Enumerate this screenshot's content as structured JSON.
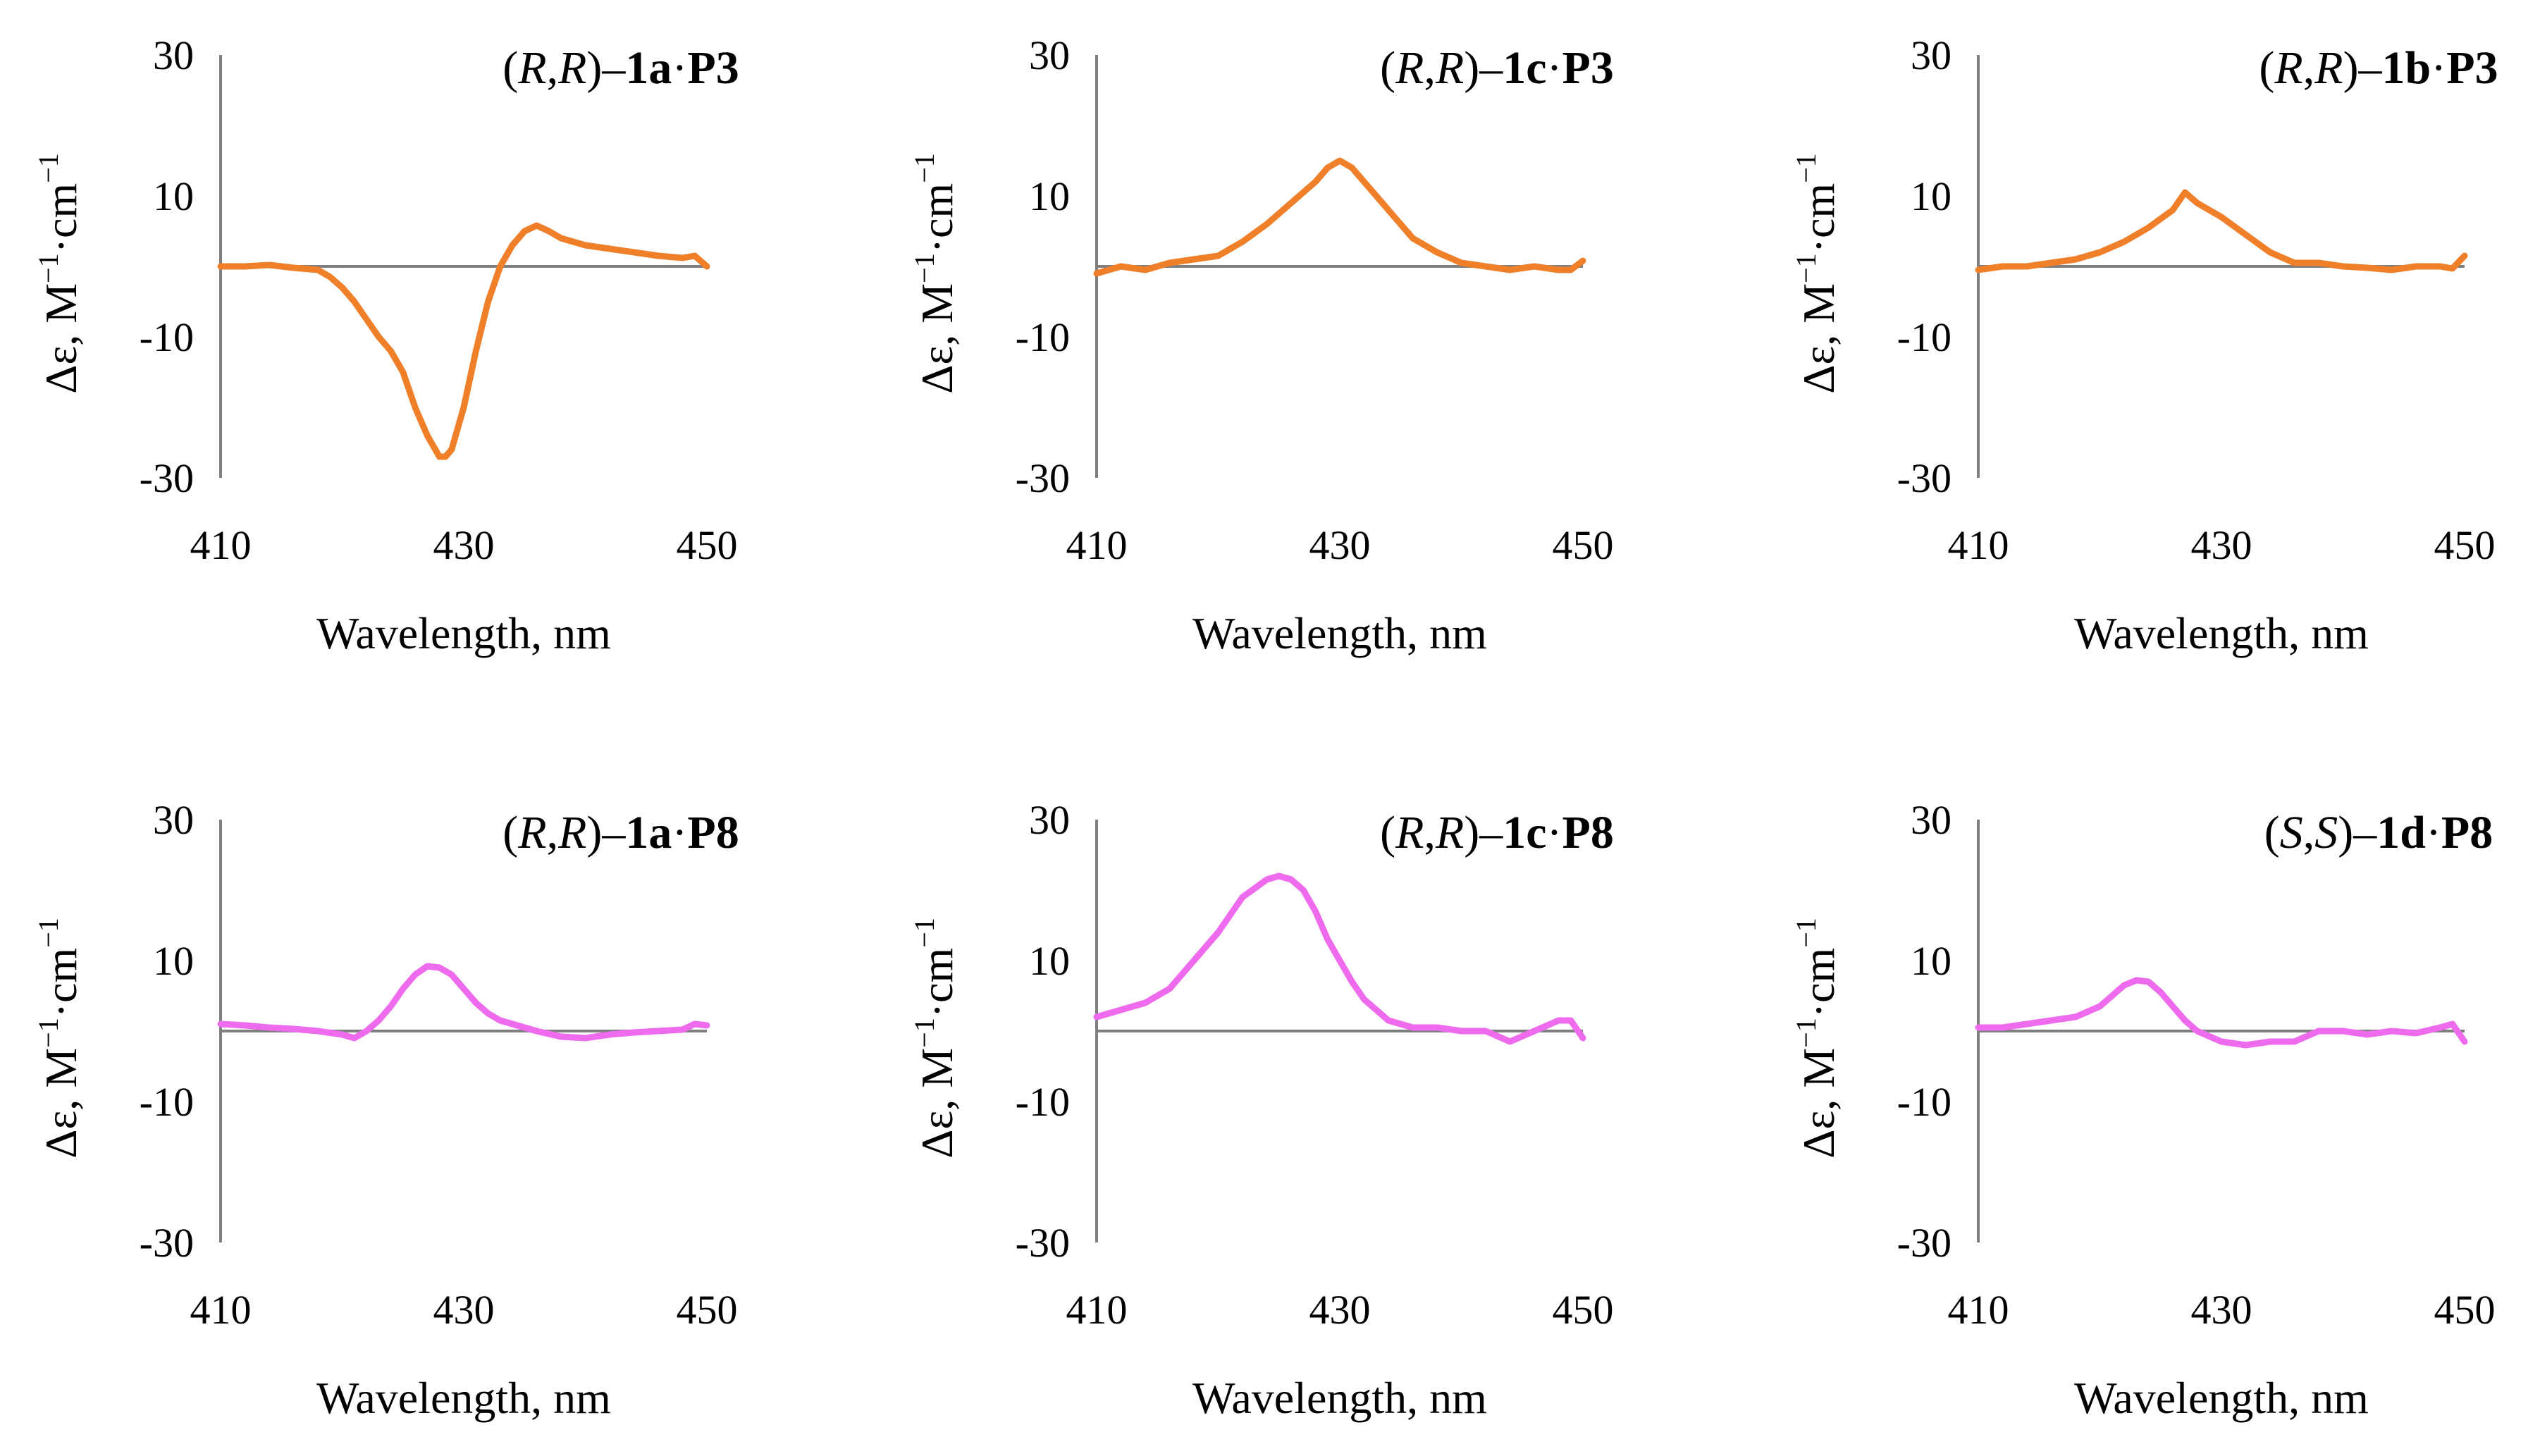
{
  "colors": {
    "top_row": "#F07F2A",
    "bottom_row": "#EE6BEE",
    "axis": "#7F7F7F"
  },
  "chart_data": [
    {
      "type": "line",
      "row": 0,
      "col": 0,
      "title": "(R,R)–1a·P3",
      "title_parts": [
        {
          "text": "(",
          "style": "n"
        },
        {
          "text": "R",
          "style": "i"
        },
        {
          "text": ",",
          "style": "n"
        },
        {
          "text": "R",
          "style": "i"
        },
        {
          "text": ")–",
          "style": "n"
        },
        {
          "text": "1a",
          "style": "b"
        },
        {
          "text": "·",
          "style": "n"
        },
        {
          "text": "P3",
          "style": "b"
        }
      ],
      "xlabel": "Wavelength, nm",
      "ylabel_parts": [
        "Δε, M",
        "−1",
        "·cm",
        "−1"
      ],
      "xlim": [
        410,
        450
      ],
      "ylim": [
        -30,
        30
      ],
      "xticks": [
        "410",
        "430",
        "450"
      ],
      "yticks": [
        "30",
        "10",
        "-10",
        "-30"
      ],
      "color": "#F07F2A",
      "series": [
        {
          "name": "(R,R)–1a·P3",
          "x": [
            410,
            412,
            414,
            416,
            418,
            419,
            420,
            421,
            422,
            423,
            424,
            425,
            426,
            427,
            428,
            428.5,
            429,
            430,
            431,
            432,
            433,
            434,
            435,
            436,
            437,
            438,
            440,
            442,
            444,
            446,
            448,
            449,
            450
          ],
          "y": [
            0,
            0,
            0.2,
            -0.2,
            -0.5,
            -1.5,
            -3,
            -5,
            -7.5,
            -10,
            -12,
            -15,
            -20,
            -24,
            -27,
            -27,
            -26,
            -20,
            -12,
            -5,
            0,
            3,
            5,
            5.8,
            5,
            4,
            3,
            2.5,
            2,
            1.5,
            1.2,
            1.5,
            0
          ]
        }
      ]
    },
    {
      "type": "line",
      "row": 0,
      "col": 1,
      "title": "(R,R)–1c·P3",
      "title_parts": [
        {
          "text": "(",
          "style": "n"
        },
        {
          "text": "R",
          "style": "i"
        },
        {
          "text": ",",
          "style": "n"
        },
        {
          "text": "R",
          "style": "i"
        },
        {
          "text": ")–",
          "style": "n"
        },
        {
          "text": "1c",
          "style": "b"
        },
        {
          "text": "·",
          "style": "n"
        },
        {
          "text": "P3",
          "style": "b"
        }
      ],
      "xlabel": "Wavelength, nm",
      "ylabel_parts": [
        "Δε, M",
        "−1",
        "·cm",
        "−1"
      ],
      "xlim": [
        410,
        450
      ],
      "ylim": [
        -30,
        30
      ],
      "xticks": [
        "410",
        "430",
        "450"
      ],
      "yticks": [
        "30",
        "10",
        "-10",
        "-30"
      ],
      "color": "#F07F2A",
      "series": [
        {
          "name": "(R,R)–1c·P3",
          "x": [
            410,
            412,
            414,
            416,
            418,
            420,
            422,
            424,
            426,
            428,
            429,
            430,
            431,
            432,
            433,
            434,
            436,
            438,
            440,
            442,
            444,
            446,
            448,
            449,
            450
          ],
          "y": [
            -1,
            0,
            -0.5,
            0.5,
            1,
            1.5,
            3.5,
            6,
            9,
            12,
            14,
            15,
            14,
            12,
            10,
            8,
            4,
            2,
            0.5,
            0,
            -0.5,
            0,
            -0.5,
            -0.5,
            0.8
          ]
        }
      ]
    },
    {
      "type": "line",
      "row": 0,
      "col": 2,
      "title": "(R,R)–1b·P3",
      "title_parts": [
        {
          "text": "(",
          "style": "n"
        },
        {
          "text": "R",
          "style": "i"
        },
        {
          "text": ",",
          "style": "n"
        },
        {
          "text": "R",
          "style": "i"
        },
        {
          "text": ")–",
          "style": "n"
        },
        {
          "text": "1b",
          "style": "b"
        },
        {
          "text": "·",
          "style": "n"
        },
        {
          "text": "P3",
          "style": "b"
        }
      ],
      "xlabel": "Wavelength, nm",
      "ylabel_parts": [
        "Δε, M",
        "−1",
        "·cm",
        "−1"
      ],
      "xlim": [
        410,
        450
      ],
      "ylim": [
        -30,
        30
      ],
      "xticks": [
        "410",
        "430",
        "450"
      ],
      "yticks": [
        "30",
        "10",
        "-10",
        "-30"
      ],
      "color": "#F07F2A",
      "series": [
        {
          "name": "(R,R)–1b·P3",
          "x": [
            410,
            412,
            414,
            416,
            418,
            420,
            422,
            424,
            426,
            427,
            428,
            430,
            432,
            434,
            436,
            438,
            440,
            442,
            444,
            446,
            448,
            449,
            450
          ],
          "y": [
            -0.5,
            0,
            0,
            0.5,
            1,
            2,
            3.5,
            5.5,
            8,
            10.5,
            9,
            7,
            4.5,
            2,
            0.5,
            0.5,
            0,
            -0.2,
            -0.5,
            0,
            0,
            -0.3,
            1.5
          ]
        }
      ]
    },
    {
      "type": "line",
      "row": 1,
      "col": 0,
      "title": "(R,R)–1a·P8",
      "title_parts": [
        {
          "text": "(",
          "style": "n"
        },
        {
          "text": "R",
          "style": "i"
        },
        {
          "text": ",",
          "style": "n"
        },
        {
          "text": "R",
          "style": "i"
        },
        {
          "text": ")–",
          "style": "n"
        },
        {
          "text": "1a",
          "style": "b"
        },
        {
          "text": "·",
          "style": "n"
        },
        {
          "text": "P8",
          "style": "b"
        }
      ],
      "xlabel": "Wavelength, nm",
      "ylabel_parts": [
        "Δε, M",
        "−1",
        "·cm",
        "−1"
      ],
      "xlim": [
        410,
        450
      ],
      "ylim": [
        -30,
        30
      ],
      "xticks": [
        "410",
        "430",
        "450"
      ],
      "yticks": [
        "30",
        "10",
        "-10",
        "-30"
      ],
      "color": "#EE6BEE",
      "series": [
        {
          "name": "(R,R)–1a·P8",
          "x": [
            410,
            412,
            414,
            416,
            418,
            420,
            421,
            422,
            423,
            424,
            425,
            426,
            427,
            428,
            429,
            430,
            431,
            432,
            433,
            434,
            436,
            438,
            440,
            442,
            444,
            446,
            448,
            449,
            450
          ],
          "y": [
            1,
            0.8,
            0.5,
            0.3,
            0,
            -0.5,
            -1,
            0,
            1.5,
            3.5,
            6,
            8,
            9.2,
            9,
            8,
            6,
            4,
            2.5,
            1.5,
            1,
            0,
            -0.8,
            -1,
            -0.5,
            -0.2,
            0,
            0.2,
            1,
            0.8
          ]
        }
      ]
    },
    {
      "type": "line",
      "row": 1,
      "col": 1,
      "title": "(R,R)–1c·P8",
      "title_parts": [
        {
          "text": "(",
          "style": "n"
        },
        {
          "text": "R",
          "style": "i"
        },
        {
          "text": ",",
          "style": "n"
        },
        {
          "text": "R",
          "style": "i"
        },
        {
          "text": ")–",
          "style": "n"
        },
        {
          "text": "1c",
          "style": "b"
        },
        {
          "text": "·",
          "style": "n"
        },
        {
          "text": "P8",
          "style": "b"
        }
      ],
      "xlabel": "Wavelength, nm",
      "ylabel_parts": [
        "Δε, M",
        "−1",
        "·cm",
        "−1"
      ],
      "xlim": [
        410,
        450
      ],
      "ylim": [
        -30,
        30
      ],
      "xticks": [
        "410",
        "430",
        "450"
      ],
      "yticks": [
        "30",
        "10",
        "-10",
        "-30"
      ],
      "color": "#EE6BEE",
      "series": [
        {
          "name": "(R,R)–1c·P8",
          "x": [
            410,
            411,
            412,
            414,
            416,
            418,
            420,
            422,
            424,
            425,
            426,
            427,
            428,
            429,
            430,
            431,
            432,
            433,
            434,
            436,
            438,
            440,
            442,
            444,
            446,
            448,
            449,
            450
          ],
          "y": [
            2,
            2.5,
            3,
            4,
            6,
            10,
            14,
            19,
            21.5,
            22,
            21.5,
            20,
            17,
            13,
            10,
            7,
            4.5,
            3,
            1.5,
            0.5,
            0.5,
            0,
            0,
            -1.5,
            0,
            1.5,
            1.5,
            -1
          ]
        }
      ]
    },
    {
      "type": "line",
      "row": 1,
      "col": 2,
      "title": "(S,S)–1d·P8",
      "title_parts": [
        {
          "text": "(",
          "style": "n"
        },
        {
          "text": "S",
          "style": "i"
        },
        {
          "text": ",",
          "style": "n"
        },
        {
          "text": "S",
          "style": "i"
        },
        {
          "text": ")–",
          "style": "n"
        },
        {
          "text": "1d",
          "style": "b"
        },
        {
          "text": "·",
          "style": "n"
        },
        {
          "text": "P8",
          "style": "b"
        }
      ],
      "xlabel": "Wavelength, nm",
      "ylabel_parts": [
        "Δε, M",
        "−1",
        "·cm",
        "−1"
      ],
      "xlim": [
        410,
        450
      ],
      "ylim": [
        -30,
        30
      ],
      "xticks": [
        "410",
        "430",
        "450"
      ],
      "yticks": [
        "30",
        "10",
        "-10",
        "-30"
      ],
      "color": "#EE6BEE",
      "series": [
        {
          "name": "(S,S)–1d·P8",
          "x": [
            410,
            412,
            414,
            416,
            418,
            420,
            421,
            422,
            423,
            424,
            425,
            426,
            427,
            428,
            430,
            432,
            434,
            436,
            438,
            440,
            442,
            444,
            446,
            448,
            449,
            450
          ],
          "y": [
            0.5,
            0.5,
            1,
            1.5,
            2,
            3.5,
            5,
            6.5,
            7.2,
            7,
            5.5,
            3.5,
            1.5,
            0,
            -1.5,
            -2,
            -1.5,
            -1.5,
            0,
            0,
            -0.5,
            0,
            -0.3,
            0.5,
            1,
            -1.5
          ]
        }
      ]
    }
  ]
}
